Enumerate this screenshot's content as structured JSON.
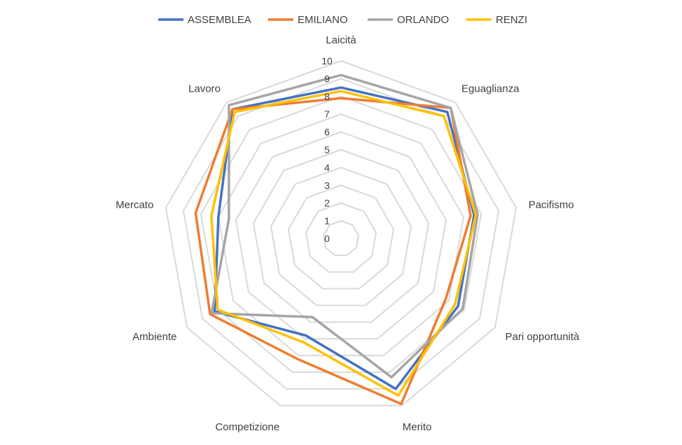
{
  "chart_data": {
    "type": "radar",
    "title": "",
    "categories": [
      "Laicità",
      "Eguaglianza",
      "Pacifismo",
      "Pari opportunità",
      "Merito",
      "Competizione",
      "Ambiente",
      "Mercato",
      "Lavoro"
    ],
    "ticks": [
      "0",
      "1",
      "2",
      "3",
      "4",
      "5",
      "6",
      "7",
      "8",
      "9",
      "10"
    ],
    "rlim": [
      0,
      10
    ],
    "legend_position": "top",
    "grid": true,
    "series": [
      {
        "name": "ASSEMBLEA",
        "color": "#4472C4",
        "values": [
          8.5,
          9.3,
          7.6,
          7.6,
          9.0,
          5.8,
          8.2,
          7.0,
          9.5
        ]
      },
      {
        "name": "EMILIANO",
        "color": "#ED7D31",
        "values": [
          7.9,
          9.6,
          7.4,
          6.8,
          9.9,
          7.2,
          8.5,
          8.3,
          9.5
        ]
      },
      {
        "name": "ORLANDO",
        "color": "#A5A5A5",
        "values": [
          9.2,
          9.6,
          7.8,
          7.9,
          8.3,
          4.7,
          8.4,
          6.4,
          9.8
        ]
      },
      {
        "name": "RENZI",
        "color": "#FFC000",
        "values": [
          8.3,
          9.0,
          7.7,
          7.4,
          9.4,
          6.2,
          8.0,
          7.4,
          9.3
        ]
      }
    ]
  }
}
